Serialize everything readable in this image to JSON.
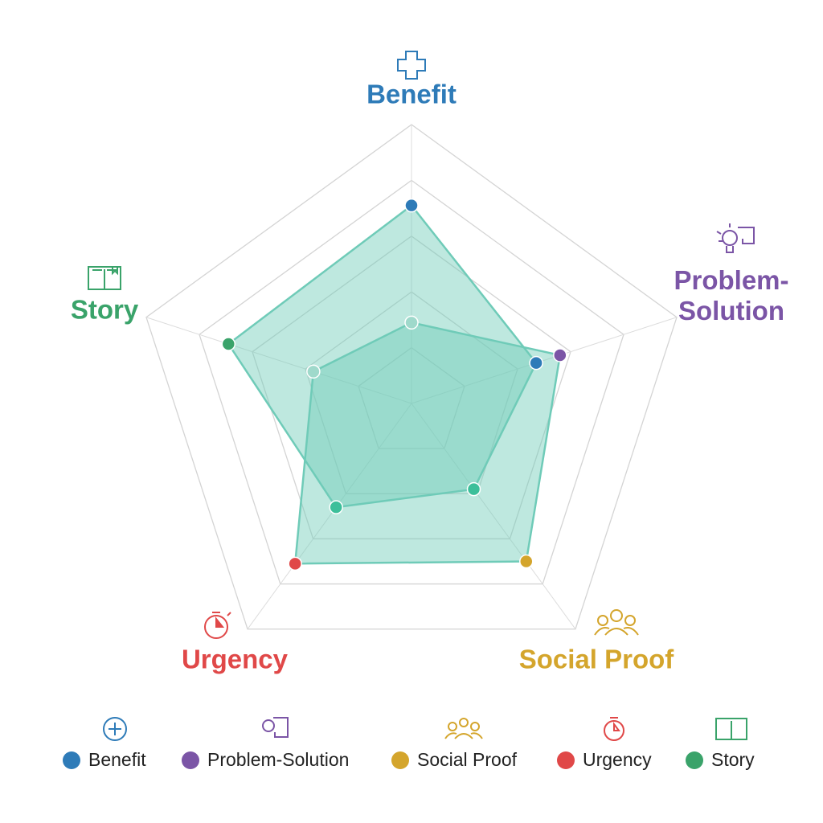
{
  "chart_data": {
    "type": "radar",
    "categories": [
      "Benefit",
      "Problem-Solution",
      "Social Proof",
      "Urgency",
      "Story"
    ],
    "category_colors": [
      "#2e7bb8",
      "#7b55a6",
      "#d4a52c",
      "#e04848",
      "#3aa36a"
    ],
    "rlim": [
      0,
      100
    ],
    "rticks": [
      20,
      40,
      60,
      80,
      100
    ],
    "grid": true,
    "fill_color": "#6fcbb8",
    "series": [
      {
        "values": [
          71,
          47,
          38,
          46,
          69
        ],
        "marker_colors": [
          "#2e7bb8",
          "#2e7bb8",
          "#3cbf9a",
          "#3cbf9a",
          "#3aa36a"
        ]
      },
      {
        "values": [
          29,
          56,
          70,
          71,
          37
        ],
        "marker_colors": [
          "#9fd9cb",
          "#7b55a6",
          "#d4a52c",
          "#e04848",
          "#9fd9cb"
        ]
      }
    ]
  }
}
